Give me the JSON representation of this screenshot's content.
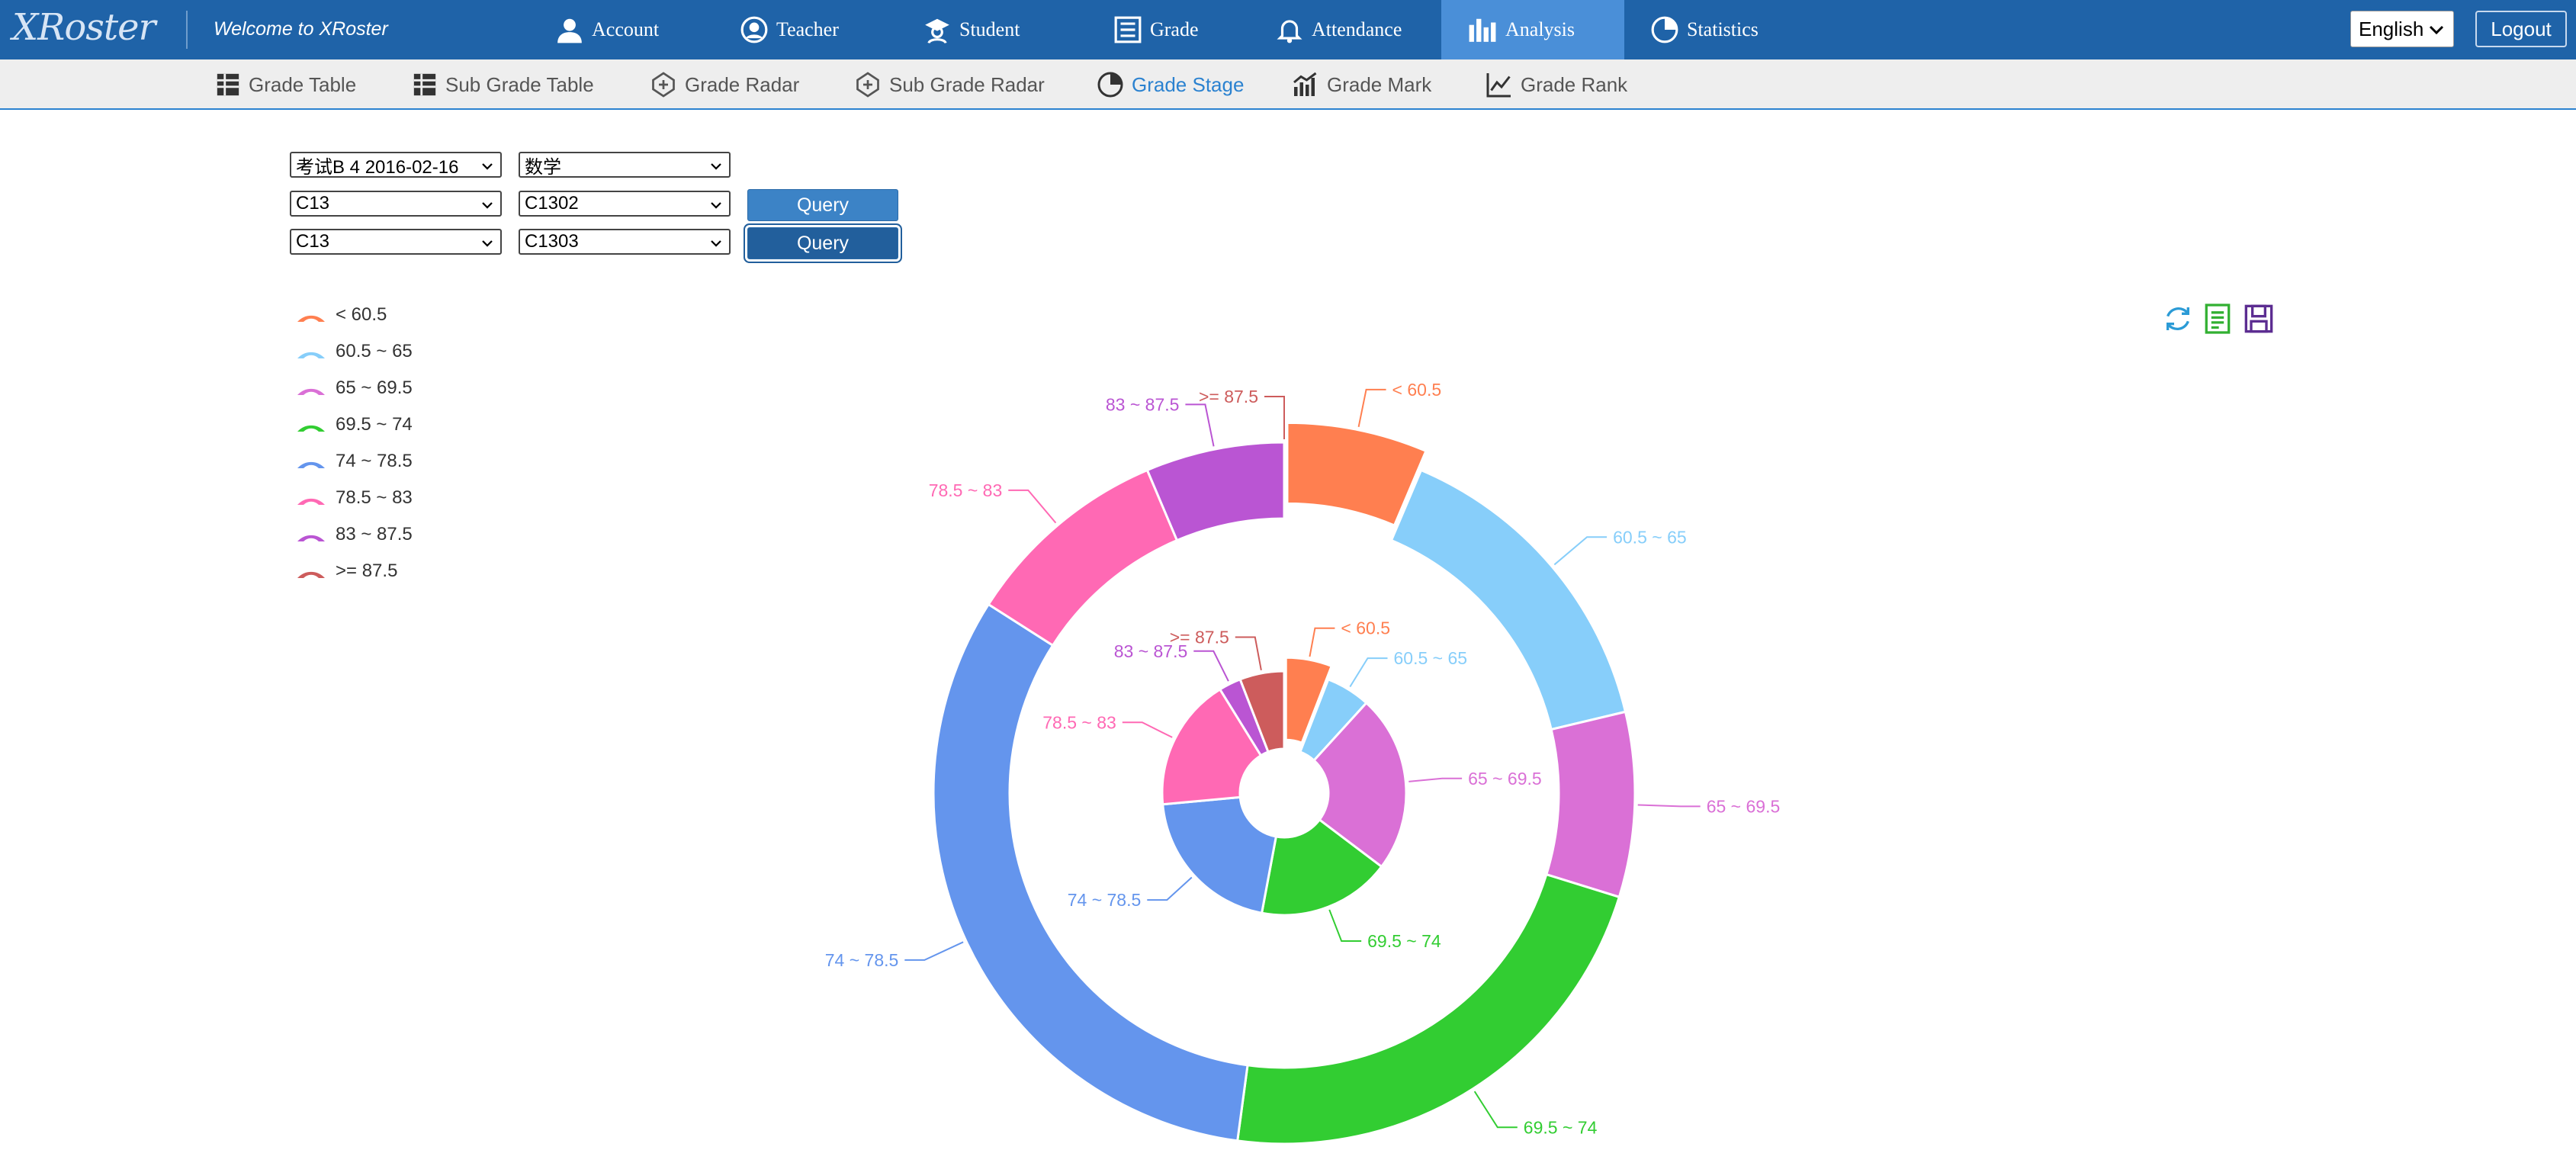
{
  "header": {
    "logo": "XRoster",
    "welcome": "Welcome to XRoster",
    "nav": [
      {
        "label": "Account",
        "icon": "user-icon"
      },
      {
        "label": "Teacher",
        "icon": "teacher-icon"
      },
      {
        "label": "Student",
        "icon": "student-icon"
      },
      {
        "label": "Grade",
        "icon": "grade-list-icon"
      },
      {
        "label": "Attendance",
        "icon": "bell-icon"
      },
      {
        "label": "Analysis",
        "icon": "bar-chart-icon",
        "active": true
      },
      {
        "label": "Statistics",
        "icon": "pie-chart-icon"
      }
    ],
    "language": "English",
    "logout": "Logout"
  },
  "subnav": [
    {
      "label": "Grade Table",
      "icon": "table-icon"
    },
    {
      "label": "Sub Grade Table",
      "icon": "table-icon"
    },
    {
      "label": "Grade Radar",
      "icon": "radar-icon"
    },
    {
      "label": "Sub Grade Radar",
      "icon": "radar-icon"
    },
    {
      "label": "Grade Stage",
      "icon": "pie-chart-icon",
      "active": true
    },
    {
      "label": "Grade Mark",
      "icon": "mark-chart-icon"
    },
    {
      "label": "Grade Rank",
      "icon": "line-chart-icon"
    }
  ],
  "filters": {
    "exam": "考试B 4 2016-02-16",
    "subject": "数学",
    "row1": {
      "grade": "C13",
      "class": "C1302",
      "button": "Query"
    },
    "row2": {
      "grade": "C13",
      "class": "C1303",
      "button": "Query"
    }
  },
  "toolbox": [
    "refresh-icon",
    "data-view-icon",
    "save-image-icon"
  ],
  "colors": {
    "header": "#1f63a8",
    "accent": "#2b82d0",
    "stages": [
      "#ff7f50",
      "#87cefa",
      "#da70d6",
      "#32cd32",
      "#6495ed",
      "#ff69b4",
      "#ba55d3",
      "#cd5c5c"
    ]
  },
  "chart_data": {
    "type": "pie",
    "title": "",
    "legend_position": "top-left",
    "legend": [
      "< 60.5",
      "60.5 ~ 65",
      "65 ~ 69.5",
      "69.5 ~ 74",
      "74 ~ 78.5",
      "78.5 ~ 83",
      "83 ~ 87.5",
      ">= 87.5"
    ],
    "series": [
      {
        "ring": "outer",
        "categories": [
          "< 60.5",
          "60.5 ~ 65",
          "65 ~ 69.5",
          "69.5 ~ 74",
          "74 ~ 78.5",
          "78.5 ~ 83",
          "83 ~ 87.5",
          ">= 87.5"
        ],
        "values": [
          6,
          14,
          8,
          21,
          30,
          9,
          6,
          0
        ],
        "highlighted": "< 60.5"
      },
      {
        "ring": "inner",
        "categories": [
          "< 60.5",
          "60.5 ~ 65",
          "65 ~ 69.5",
          "69.5 ~ 74",
          "74 ~ 78.5",
          "78.5 ~ 83",
          "83 ~ 87.5",
          ">= 87.5"
        ],
        "values": [
          2,
          2,
          8,
          6,
          7,
          6,
          1,
          2
        ],
        "highlighted": "< 60.5"
      }
    ]
  }
}
